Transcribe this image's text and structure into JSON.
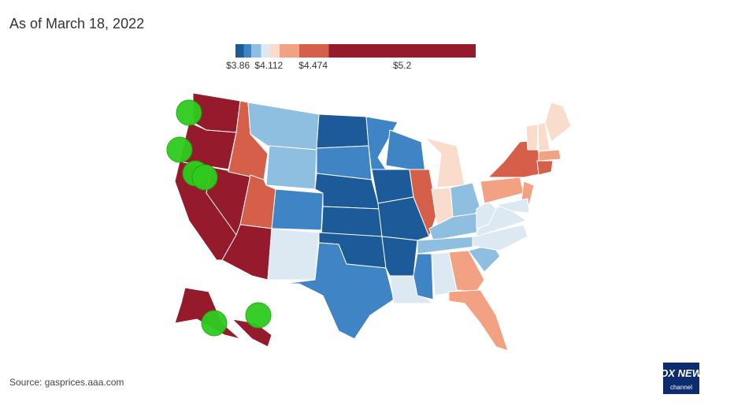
{
  "header": {
    "title": "As of March 18, 2022"
  },
  "legend": {
    "range": [
      3.84,
      5.8
    ],
    "bins": [
      3.84,
      3.91,
      3.97,
      4.05,
      4.12,
      4.2,
      4.36,
      4.6,
      5.8
    ],
    "colors": [
      "#1c5a99",
      "#3f84c4",
      "#8fbfe0",
      "#dce9f3",
      "#f9dccb",
      "#f2a282",
      "#d65f4a",
      "#951a2b"
    ],
    "ticks": [
      {
        "value": 3.86,
        "label": "$3.86"
      },
      {
        "value": 4.112,
        "label": "$4.112"
      },
      {
        "value": 4.474,
        "label": "$4.474"
      },
      {
        "value": 5.2,
        "label": "$5.2"
      }
    ]
  },
  "footer": {
    "source": "Source: gasprices.aaa.com",
    "logo": "FOX NEWS",
    "logo_sub": "channel"
  }
}
